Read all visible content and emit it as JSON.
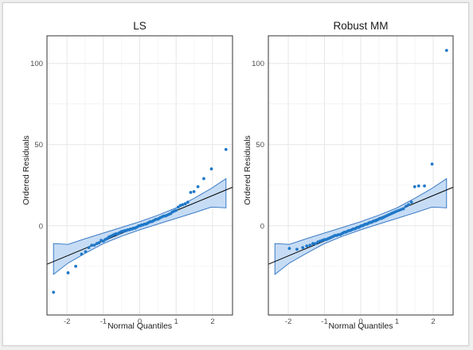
{
  "chart_data": [
    {
      "type": "scatter",
      "title": "LS",
      "xlabel": "Normal Quantiles",
      "ylabel": "Ordered Residuals",
      "x_ticks": [
        -2,
        -1,
        0,
        1,
        2
      ],
      "y_ticks": [
        0,
        50,
        100
      ],
      "xlim": [
        -2.55,
        2.55
      ],
      "ylim": [
        -55,
        117
      ],
      "grid": true,
      "points_color": "#1f78c8",
      "line_color": "#000000",
      "band_fill": "#c6dcf5",
      "band_stroke": "#2a6fbf",
      "reference_line": {
        "slope": 9.3,
        "intercept": 0
      },
      "points": [
        [
          -2.37,
          -41
        ],
        [
          -1.97,
          -29
        ],
        [
          -1.76,
          -25
        ],
        [
          -1.6,
          -17.5
        ],
        [
          -1.49,
          -16
        ],
        [
          -1.4,
          -13.5
        ],
        [
          -1.32,
          -12
        ],
        [
          -1.25,
          -12
        ],
        [
          -1.18,
          -11
        ],
        [
          -1.12,
          -10.5
        ],
        [
          -1.06,
          -9
        ],
        [
          -1.0,
          -9.5
        ],
        [
          -0.95,
          -8.5
        ],
        [
          -0.9,
          -8
        ],
        [
          -0.85,
          -7
        ],
        [
          -0.8,
          -6.5
        ],
        [
          -0.75,
          -6
        ],
        [
          -0.71,
          -5.5
        ],
        [
          -0.66,
          -5
        ],
        [
          -0.62,
          -5
        ],
        [
          -0.57,
          -4.5
        ],
        [
          -0.53,
          -4
        ],
        [
          -0.49,
          -3.5
        ],
        [
          -0.45,
          -3.5
        ],
        [
          -0.41,
          -3
        ],
        [
          -0.37,
          -3
        ],
        [
          -0.33,
          -2.5
        ],
        [
          -0.29,
          -2.5
        ],
        [
          -0.25,
          -2
        ],
        [
          -0.21,
          -2
        ],
        [
          -0.17,
          -1.5
        ],
        [
          -0.13,
          -1.5
        ],
        [
          -0.09,
          -1
        ],
        [
          -0.05,
          -0.5
        ],
        [
          -0.02,
          0
        ],
        [
          0.02,
          0
        ],
        [
          0.05,
          0.5
        ],
        [
          0.09,
          0.5
        ],
        [
          0.13,
          1
        ],
        [
          0.17,
          1
        ],
        [
          0.21,
          1.5
        ],
        [
          0.25,
          2
        ],
        [
          0.29,
          2.5
        ],
        [
          0.33,
          2.5
        ],
        [
          0.37,
          3
        ],
        [
          0.41,
          3.5
        ],
        [
          0.45,
          4
        ],
        [
          0.49,
          4
        ],
        [
          0.53,
          4.5
        ],
        [
          0.57,
          5
        ],
        [
          0.62,
          5.5
        ],
        [
          0.66,
          6
        ],
        [
          0.71,
          6
        ],
        [
          0.75,
          6.5
        ],
        [
          0.8,
          7
        ],
        [
          0.85,
          7.5
        ],
        [
          0.9,
          8.5
        ],
        [
          0.95,
          9
        ],
        [
          1.0,
          9.5
        ],
        [
          1.06,
          11.5
        ],
        [
          1.12,
          12.5
        ],
        [
          1.18,
          13
        ],
        [
          1.25,
          13.5
        ],
        [
          1.32,
          14.5
        ],
        [
          1.4,
          20.5
        ],
        [
          1.49,
          21
        ],
        [
          1.6,
          24
        ],
        [
          1.76,
          29
        ],
        [
          1.97,
          35
        ],
        [
          2.37,
          47
        ]
      ],
      "envelope_upper": [
        [
          -2.37,
          -11
        ],
        [
          -1.97,
          -11.5
        ],
        [
          -1.5,
          -8
        ],
        [
          -1.0,
          -4.5
        ],
        [
          -0.5,
          -1
        ],
        [
          0.0,
          2.5
        ],
        [
          0.5,
          6.5
        ],
        [
          1.0,
          11
        ],
        [
          1.5,
          17
        ],
        [
          1.97,
          23
        ],
        [
          2.37,
          29
        ]
      ],
      "envelope_lower": [
        [
          -2.37,
          -30
        ],
        [
          -1.97,
          -23
        ],
        [
          -1.5,
          -17
        ],
        [
          -1.0,
          -11
        ],
        [
          -0.5,
          -6.5
        ],
        [
          0.0,
          -2.5
        ],
        [
          0.5,
          1
        ],
        [
          1.0,
          4.5
        ],
        [
          1.5,
          8
        ],
        [
          1.97,
          11.5
        ],
        [
          2.37,
          11
        ]
      ]
    },
    {
      "type": "scatter",
      "title": "Robust MM",
      "xlabel": "Normal Quantiles",
      "ylabel": "Ordered Residuals",
      "x_ticks": [
        -2,
        -1,
        0,
        1,
        2
      ],
      "y_ticks": [
        0,
        50,
        100
      ],
      "xlim": [
        -2.55,
        2.55
      ],
      "ylim": [
        -55,
        117
      ],
      "grid": true,
      "points_color": "#1f78c8",
      "line_color": "#000000",
      "band_fill": "#c6dcf5",
      "band_stroke": "#2a6fbf",
      "reference_line": {
        "slope": 9.3,
        "intercept": 0
      },
      "points": [
        [
          -1.97,
          -14
        ],
        [
          -1.76,
          -14.5
        ],
        [
          -1.6,
          -13.5
        ],
        [
          -1.49,
          -12.5
        ],
        [
          -1.4,
          -12
        ],
        [
          -1.32,
          -11
        ],
        [
          -1.25,
          -11
        ],
        [
          -1.18,
          -10
        ],
        [
          -1.12,
          -9.5
        ],
        [
          -1.06,
          -9
        ],
        [
          -1.0,
          -8.5
        ],
        [
          -0.95,
          -8.5
        ],
        [
          -0.9,
          -8
        ],
        [
          -0.85,
          -7.5
        ],
        [
          -0.8,
          -7
        ],
        [
          -0.75,
          -6.5
        ],
        [
          -0.71,
          -6
        ],
        [
          -0.66,
          -6
        ],
        [
          -0.62,
          -5.5
        ],
        [
          -0.57,
          -5.5
        ],
        [
          -0.53,
          -5
        ],
        [
          -0.49,
          -4.5
        ],
        [
          -0.45,
          -4
        ],
        [
          -0.41,
          -4
        ],
        [
          -0.37,
          -3.5
        ],
        [
          -0.33,
          -3
        ],
        [
          -0.29,
          -3
        ],
        [
          -0.25,
          -2.5
        ],
        [
          -0.21,
          -2
        ],
        [
          -0.17,
          -2
        ],
        [
          -0.13,
          -1.5
        ],
        [
          -0.09,
          -1
        ],
        [
          -0.05,
          -1
        ],
        [
          -0.02,
          -0.5
        ],
        [
          0.02,
          0
        ],
        [
          0.05,
          0
        ],
        [
          0.09,
          0.5
        ],
        [
          0.13,
          1
        ],
        [
          0.17,
          1
        ],
        [
          0.21,
          1.5
        ],
        [
          0.25,
          2
        ],
        [
          0.29,
          2
        ],
        [
          0.33,
          2.5
        ],
        [
          0.37,
          3
        ],
        [
          0.41,
          3
        ],
        [
          0.45,
          3.5
        ],
        [
          0.49,
          4
        ],
        [
          0.53,
          4.5
        ],
        [
          0.57,
          4.5
        ],
        [
          0.62,
          5
        ],
        [
          0.66,
          5.5
        ],
        [
          0.71,
          6
        ],
        [
          0.75,
          6.5
        ],
        [
          0.8,
          7
        ],
        [
          0.85,
          7.5
        ],
        [
          0.9,
          8
        ],
        [
          0.95,
          8.5
        ],
        [
          1.0,
          9
        ],
        [
          1.06,
          9.5
        ],
        [
          1.12,
          10
        ],
        [
          1.18,
          10.5
        ],
        [
          1.25,
          12
        ],
        [
          1.32,
          13
        ],
        [
          1.4,
          14.5
        ],
        [
          1.49,
          24
        ],
        [
          1.6,
          24.5
        ],
        [
          1.76,
          24.5
        ],
        [
          1.97,
          38
        ],
        [
          2.37,
          108
        ]
      ],
      "envelope_upper": [
        [
          -2.37,
          -11
        ],
        [
          -1.97,
          -11.5
        ],
        [
          -1.5,
          -8
        ],
        [
          -1.0,
          -4.5
        ],
        [
          -0.5,
          -1
        ],
        [
          0.0,
          2.5
        ],
        [
          0.5,
          6.5
        ],
        [
          1.0,
          11
        ],
        [
          1.5,
          17
        ],
        [
          1.97,
          23
        ],
        [
          2.37,
          29
        ]
      ],
      "envelope_lower": [
        [
          -2.37,
          -30
        ],
        [
          -1.97,
          -23
        ],
        [
          -1.5,
          -17
        ],
        [
          -1.0,
          -11
        ],
        [
          -0.5,
          -6.5
        ],
        [
          0.0,
          -2.5
        ],
        [
          0.5,
          1
        ],
        [
          1.0,
          4.5
        ],
        [
          1.5,
          8
        ],
        [
          1.97,
          11.5
        ],
        [
          2.37,
          11
        ]
      ]
    }
  ]
}
